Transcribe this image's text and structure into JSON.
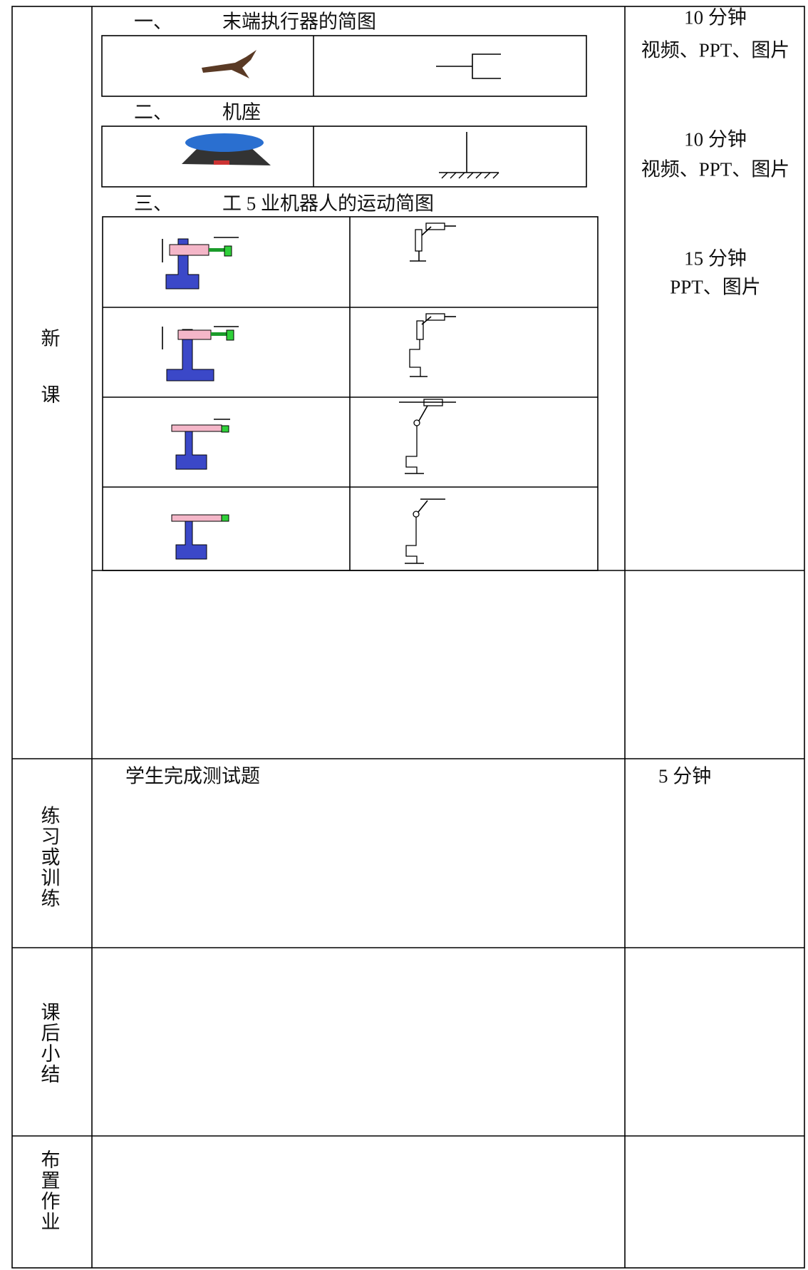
{
  "sections": [
    {
      "label": "新课",
      "headings": [
        {
          "number": "一、",
          "title": "末端执行器的简图"
        },
        {
          "number": "二、",
          "title": "机座"
        },
        {
          "number": "三、",
          "title": "工 5 业机器人的运动简图"
        }
      ],
      "time": [
        [
          "10 分钟",
          "视频、PPT、图片"
        ],
        [
          "10 分钟",
          "视频、PPT、图片"
        ],
        [
          "15 分钟",
          "PPT、图片"
        ]
      ]
    },
    {
      "label": "练习或训练",
      "content": "学生完成测试题",
      "time": "5 分钟"
    },
    {
      "label": "课后小结"
    },
    {
      "label": "布置作业"
    }
  ]
}
